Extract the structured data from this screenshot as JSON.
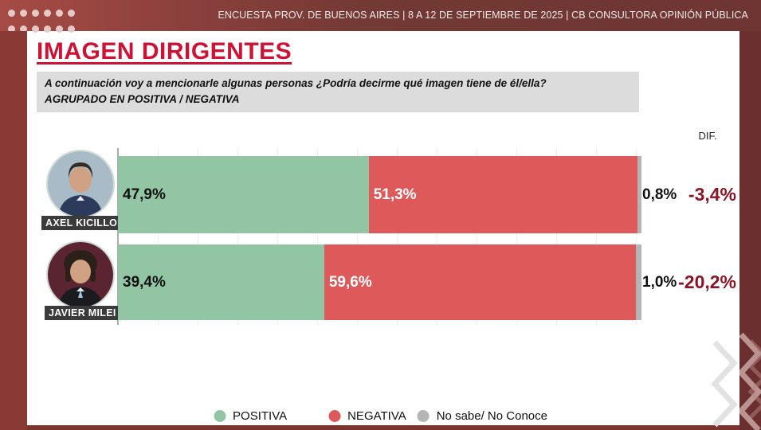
{
  "header": {
    "text": "ENCUESTA PROV. DE BUENOS AIRES | 8 A 12 DE SEPTIEMBRE DE 2025 | CB CONSULTORA OPINIÓN PÚBLICA"
  },
  "title": "IMAGEN DIRIGENTES",
  "subtitle": {
    "line1": "A continuación voy a mencionarle algunas personas  ¿Podría decirme qué imagen tiene de él/ella?",
    "line2": "AGRUPADO EN POSITIVA / NEGATIVA"
  },
  "dif": {
    "header": "DIF."
  },
  "people": [
    {
      "name": "AXEL KICILLOF",
      "positiva_label": "47,9%",
      "negativa_label": "51,3%",
      "ns_label": "0,8%",
      "dif_label": "-3,4%"
    },
    {
      "name": "JAVIER MILEI",
      "positiva_label": "39,4%",
      "negativa_label": "59,6%",
      "ns_label": "1,0%",
      "dif_label": "-20,2%"
    }
  ],
  "chart_data": {
    "type": "bar",
    "orientation": "horizontal",
    "stacked": true,
    "title": "IMAGEN DIRIGENTES",
    "categories": [
      "AXEL KICILLOF",
      "JAVIER MILEI"
    ],
    "series": [
      {
        "name": "POSITIVA",
        "color": "#92C5A4",
        "values": [
          47.9,
          39.4
        ]
      },
      {
        "name": "NEGATIVA",
        "color": "#DE5A5A",
        "values": [
          51.3,
          59.6
        ]
      },
      {
        "name": "No sabe/ No Conoce",
        "color": "#B5B5B5",
        "values": [
          0.8,
          1.0
        ]
      }
    ],
    "dif_values": [
      -3.4,
      -20.2
    ],
    "xlim": [
      0,
      100
    ],
    "grid": true,
    "legend_position": "bottom"
  },
  "legend": {
    "items": [
      {
        "label": "POSITIVA",
        "color": "#92C5A4"
      },
      {
        "label": "NEGATIVA",
        "color": "#DE5A5A"
      },
      {
        "label": "No sabe/ No Conoce",
        "color": "#B5B5B5"
      }
    ]
  },
  "colors": {
    "title_red": "#CE1236",
    "dif_text": "#8A1525",
    "header_bar": "#6E3533",
    "left_strip": "#8A3A35",
    "right_strip": "#6C2F2F",
    "subtitle_bg": "#DCDCDC",
    "name_tag_bg": "#3B3B3B"
  }
}
